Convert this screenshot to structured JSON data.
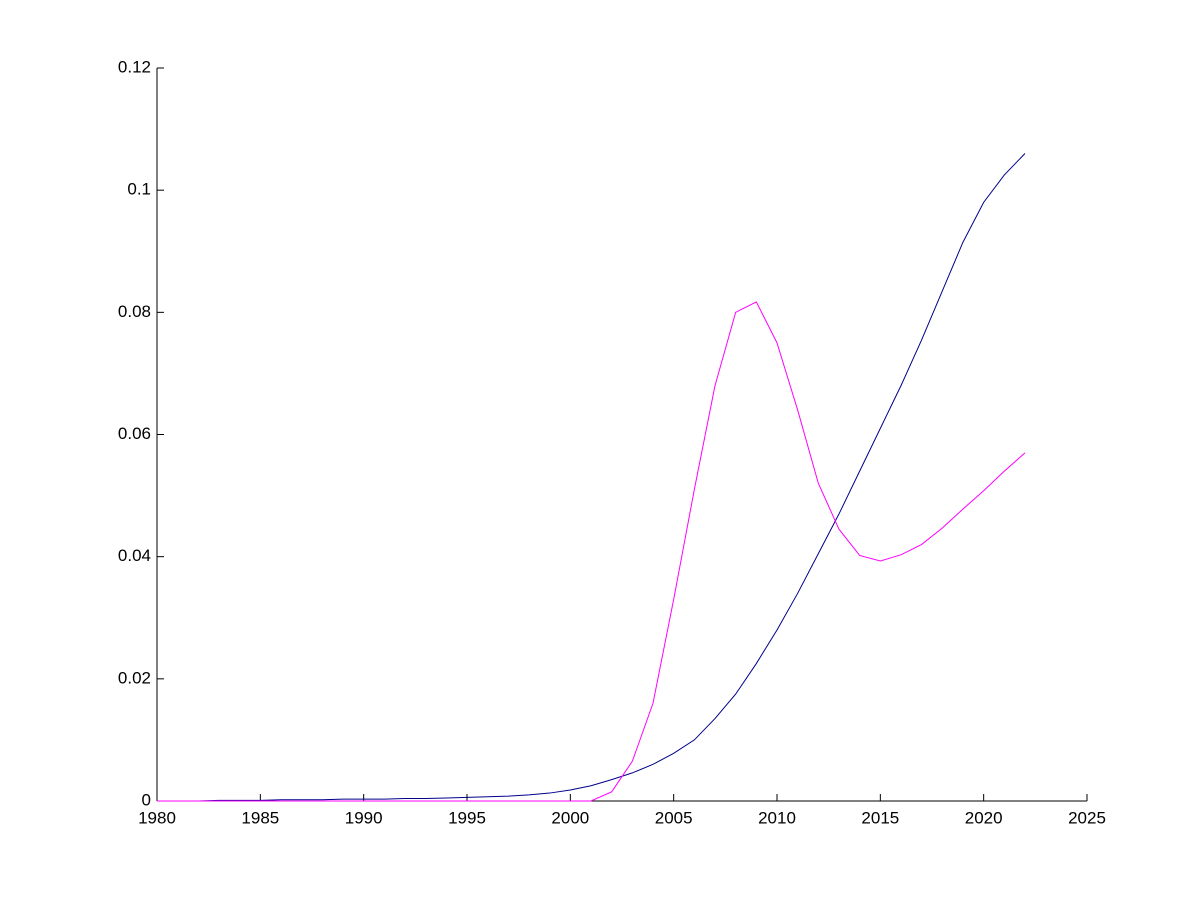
{
  "chart_data": {
    "type": "line",
    "x": [
      1980,
      1981,
      1982,
      1983,
      1984,
      1985,
      1986,
      1987,
      1988,
      1989,
      1990,
      1991,
      1992,
      1993,
      1994,
      1995,
      1996,
      1997,
      1998,
      1999,
      2000,
      2001,
      2002,
      2003,
      2004,
      2005,
      2006,
      2007,
      2008,
      2009,
      2010,
      2011,
      2012,
      2013,
      2014,
      2015,
      2016,
      2017,
      2018,
      2019,
      2020,
      2021,
      2022
    ],
    "series": [
      {
        "color": "#00008b",
        "values": [
          0,
          0,
          0,
          0.0001,
          0.0001,
          0.0001,
          0.0002,
          0.0002,
          0.0002,
          0.0003,
          0.0003,
          0.0003,
          0.0004,
          0.0004,
          0.0005,
          0.0006,
          0.0007,
          0.0008,
          0.001,
          0.0013,
          0.0018,
          0.0025,
          0.0035,
          0.0046,
          0.006,
          0.0078,
          0.01,
          0.0135,
          0.0175,
          0.0225,
          0.028,
          0.034,
          0.0405,
          0.047,
          0.054,
          0.061,
          0.068,
          0.0755,
          0.0835,
          0.0915,
          0.098,
          0.1025,
          0.106
        ]
      },
      {
        "color": "#ff00ff",
        "values": [
          0,
          0,
          0,
          0,
          0,
          0,
          0,
          0,
          0,
          0,
          0,
          0,
          0,
          0,
          0,
          0,
          0,
          0,
          0,
          0,
          0,
          0,
          0.0015,
          0.0065,
          0.016,
          0.033,
          0.051,
          0.068,
          0.08,
          0.0817,
          0.075,
          0.064,
          0.052,
          0.0445,
          0.0402,
          0.0393,
          0.0403,
          0.042,
          0.0447,
          0.0478,
          0.0508,
          0.054,
          0.057
        ]
      }
    ],
    "xlim": [
      1980,
      2025
    ],
    "xticks": [
      1980,
      1985,
      1990,
      1995,
      2000,
      2005,
      2010,
      2015,
      2020,
      2025
    ],
    "ylim": [
      0,
      0.12
    ],
    "yticks": [
      0,
      0.02,
      0.04,
      0.06,
      0.08,
      0.1,
      0.12
    ]
  }
}
